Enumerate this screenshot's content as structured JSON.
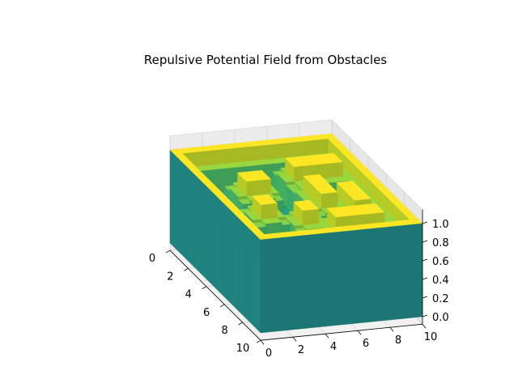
{
  "chart_data": {
    "type": "surface",
    "title": "Repulsive Potential Field from Obstacles",
    "xlabel": "",
    "ylabel": "",
    "zlabel": "",
    "xlim": [
      0,
      10
    ],
    "ylim": [
      0,
      10
    ],
    "zlim": [
      0,
      1
    ],
    "x_ticks": [
      "0",
      "2",
      "4",
      "6",
      "8",
      "10"
    ],
    "y_ticks": [
      "0",
      "2",
      "4",
      "6",
      "8",
      "10"
    ],
    "z_ticks": [
      "0.0",
      "0.2",
      "0.4",
      "0.6",
      "0.8",
      "1.0"
    ],
    "colormap": "viridis",
    "grid": true,
    "obstacles": [
      {
        "x": [
          0,
          10
        ],
        "y": [
          0,
          0.5
        ]
      },
      {
        "x": [
          0,
          10
        ],
        "y": [
          9.5,
          10
        ]
      },
      {
        "x": [
          0,
          0.5
        ],
        "y": [
          0,
          10
        ]
      },
      {
        "x": [
          9.5,
          10
        ],
        "y": [
          0,
          10
        ]
      },
      {
        "x": [
          2,
          3
        ],
        "y": [
          6,
          9
        ]
      },
      {
        "x": [
          4,
          6
        ],
        "y": [
          6,
          7
        ]
      },
      {
        "x": [
          5,
          7
        ],
        "y": [
          7.5,
          8.5
        ]
      },
      {
        "x": [
          3,
          4
        ],
        "y": [
          2.5,
          4
        ]
      },
      {
        "x": [
          5.5,
          6.5
        ],
        "y": [
          2,
          3
        ]
      },
      {
        "x": [
          6.5,
          7.5
        ],
        "y": [
          4,
          5
        ]
      },
      {
        "x": [
          7.5,
          8.5
        ],
        "y": [
          5.5,
          8.5
        ]
      }
    ]
  }
}
